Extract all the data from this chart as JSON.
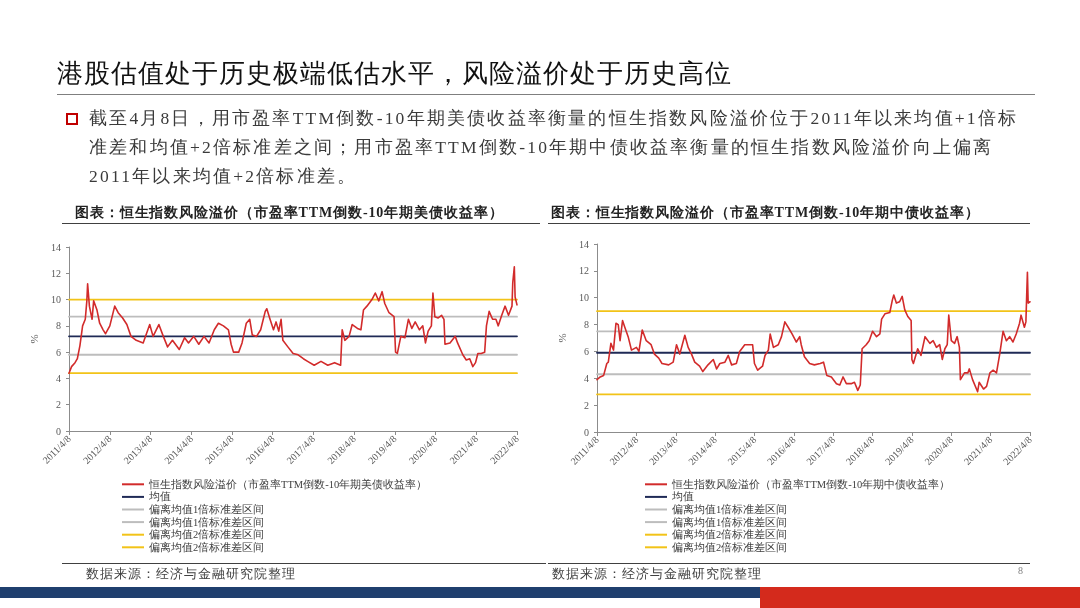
{
  "chart_data": [
    {
      "type": "other",
      "title": "港股估值处于历史极端低估水平，风险溢价处于历史高位",
      "annotations": [
        "截至4月8日，用市盈率TTM倒数-10年期美债收益率衡量的恒生指数风险溢价位于2011年以来均值+1倍标准差和均值+2倍标准差之间；用市盈率TTM倒数-10年期中债收益率衡量的恒生指数风险溢价向上偏离2011年以来均值+2倍标准差。",
        "8"
      ]
    },
    {
      "type": "line",
      "title": "图表：恒生指数风险溢价（市盈率TTM倒数-10年期美债收益率）",
      "ylabel": "%",
      "xlim": [
        "2011-04-08",
        "2022-04-08"
      ],
      "xticks": [
        {
          "value": "2011-04-08",
          "label": "2011/4/8"
        },
        {
          "value": "2012-04-08",
          "label": "2012/4/8"
        },
        {
          "value": "2013-04-08",
          "label": "2013/4/8"
        },
        {
          "value": "2014-04-08",
          "label": "2014/4/8"
        },
        {
          "value": "2015-04-08",
          "label": "2015/4/8"
        },
        {
          "value": "2016-04-08",
          "label": "2016/4/8"
        },
        {
          "value": "2017-04-08",
          "label": "2017/4/8"
        },
        {
          "value": "2018-04-08",
          "label": "2018/4/8"
        },
        {
          "value": "2019-04-08",
          "label": "2019/4/8"
        },
        {
          "value": "2020-04-08",
          "label": "2020/4/8"
        },
        {
          "value": "2021-04-08",
          "label": "2021/4/8"
        },
        {
          "value": "2022-04-08",
          "label": "2022/4/8"
        }
      ],
      "ylim": [
        0,
        14
      ],
      "yticks": [
        0,
        2,
        4,
        6,
        8,
        10,
        12,
        14
      ],
      "grid": false,
      "legend": "bottom",
      "marker": "none",
      "annotations": [
        "数据来源：经济与金融研究院整理"
      ],
      "series": [
        {
          "name": "恒生指数风险溢价（市盈率TTM倒数-10年期美债收益率）",
          "color": "#d22b2b",
          "x": [
            "2011-04-08",
            "2011-05-01",
            "2011-06-01",
            "2011-06-22",
            "2011-07-15",
            "2011-08-08",
            "2011-09-01",
            "2011-09-15",
            "2011-09-22",
            "2011-10-08",
            "2011-11-01",
            "2011-11-15",
            "2011-12-15",
            "2012-01-08",
            "2012-02-08",
            "2012-03-01",
            "2012-04-08",
            "2012-05-22",
            "2012-06-22",
            "2012-08-01",
            "2012-09-08",
            "2012-10-15",
            "2012-12-01",
            "2013-02-01",
            "2013-04-01",
            "2013-05-01",
            "2013-06-22",
            "2013-08-01",
            "2013-09-08",
            "2013-10-22",
            "2013-12-22",
            "2014-02-08",
            "2014-03-15",
            "2014-05-01",
            "2014-06-15",
            "2014-08-01",
            "2014-09-15",
            "2014-11-01",
            "2014-12-08",
            "2015-01-22",
            "2015-03-08",
            "2015-04-01",
            "2015-04-22",
            "2015-06-08",
            "2015-07-08",
            "2015-08-15",
            "2015-09-15",
            "2015-10-08",
            "2015-11-15",
            "2015-12-22",
            "2016-02-01",
            "2016-02-15",
            "2016-03-15",
            "2016-04-15",
            "2016-05-08",
            "2016-06-01",
            "2016-06-22",
            "2016-07-08",
            "2016-08-22",
            "2016-10-08",
            "2016-11-22",
            "2017-01-08",
            "2017-02-15",
            "2017-04-15",
            "2017-06-15",
            "2017-08-15",
            "2017-10-15",
            "2017-12-08",
            "2017-12-22",
            "2018-01-15",
            "2018-02-22",
            "2018-03-22",
            "2018-05-08",
            "2018-06-08",
            "2018-07-01",
            "2018-08-01",
            "2018-09-15",
            "2018-10-15",
            "2018-11-15",
            "2018-12-15",
            "2019-01-08",
            "2019-02-15",
            "2019-04-01",
            "2019-04-15",
            "2019-05-01",
            "2019-06-01",
            "2019-07-08",
            "2019-08-08",
            "2019-09-08",
            "2019-10-08",
            "2019-11-15",
            "2019-12-15",
            "2020-01-08",
            "2020-02-01",
            "2020-03-01",
            "2020-03-15",
            "2020-04-01",
            "2020-05-01",
            "2020-06-01",
            "2020-06-22",
            "2020-07-01",
            "2020-08-15",
            "2020-10-01",
            "2020-10-22",
            "2020-12-08",
            "2021-01-08",
            "2021-02-08",
            "2021-03-08",
            "2021-04-01",
            "2021-04-22",
            "2021-05-22",
            "2021-06-22",
            "2021-07-08",
            "2021-08-01",
            "2021-09-01",
            "2021-10-01",
            "2021-10-22",
            "2021-11-22",
            "2021-12-22",
            "2022-01-22",
            "2022-02-22",
            "2022-03-01",
            "2022-03-15",
            "2022-03-22",
            "2022-04-08"
          ],
          "values": [
            4.4,
            4.9,
            5.2,
            5.5,
            6.5,
            8.0,
            8.5,
            9.9,
            11.2,
            9.5,
            8.5,
            9.9,
            9.2,
            8.2,
            7.7,
            7.4,
            8.0,
            9.5,
            9.0,
            8.6,
            8.1,
            7.2,
            6.9,
            6.7,
            8.1,
            7.2,
            8.1,
            7.2,
            6.4,
            6.9,
            6.2,
            7.1,
            6.7,
            7.2,
            6.6,
            7.2,
            6.7,
            7.7,
            8.2,
            8.0,
            7.7,
            6.6,
            6.0,
            6.0,
            6.7,
            8.2,
            8.5,
            7.3,
            7.2,
            7.7,
            9.1,
            9.3,
            8.5,
            7.7,
            8.3,
            7.6,
            8.5,
            6.9,
            6.4,
            5.9,
            5.8,
            5.5,
            5.3,
            5.0,
            5.3,
            5.0,
            5.2,
            5.0,
            7.7,
            6.9,
            7.2,
            8.1,
            7.8,
            7.7,
            9.2,
            9.5,
            10.0,
            10.5,
            9.9,
            10.6,
            9.7,
            9.0,
            8.7,
            6.0,
            5.9,
            7.2,
            7.1,
            8.5,
            7.8,
            8.3,
            7.7,
            8.0,
            6.7,
            7.6,
            8.0,
            10.5,
            8.7,
            8.6,
            8.8,
            8.5,
            6.6,
            6.7,
            7.2,
            6.7,
            5.8,
            5.4,
            5.5,
            4.9,
            5.2,
            5.9,
            5.9,
            6.0,
            8.0,
            9.1,
            8.5,
            8.5,
            8.0,
            8.8,
            9.5,
            8.8,
            9.5,
            11.3,
            12.5,
            10.2,
            9.6
          ]
        },
        {
          "name": "均值",
          "color": "#1f2a56",
          "x": [
            "2011-04-08",
            "2022-04-08"
          ],
          "values": [
            7.2,
            7.2
          ]
        },
        {
          "name": "偏离均值1倍标准差区间",
          "color": "#bdbdbd",
          "x": [
            "2011-04-08",
            "2022-04-08"
          ],
          "values": [
            8.7,
            8.7
          ]
        },
        {
          "name": "偏离均值1倍标准差区间",
          "color": "#bdbdbd",
          "x": [
            "2011-04-08",
            "2022-04-08"
          ],
          "values": [
            5.8,
            5.8
          ]
        },
        {
          "name": "偏离均值2倍标准差区间",
          "color": "#f2c318",
          "x": [
            "2011-04-08",
            "2022-04-08"
          ],
          "values": [
            10.0,
            10.0
          ]
        },
        {
          "name": "偏离均值2倍标准差区间",
          "color": "#f2c318",
          "x": [
            "2011-04-08",
            "2022-04-08"
          ],
          "values": [
            4.4,
            4.4
          ]
        }
      ]
    },
    {
      "type": "line",
      "title": "图表：恒生指数风险溢价（市盈率TTM倒数-10年期中债收益率）",
      "ylabel": "%",
      "xlim": [
        "2011-04-08",
        "2022-04-08"
      ],
      "xticks": [
        {
          "value": "2011-04-08",
          "label": "2011/4/8"
        },
        {
          "value": "2012-04-08",
          "label": "2012/4/8"
        },
        {
          "value": "2013-04-08",
          "label": "2013/4/8"
        },
        {
          "value": "2014-04-08",
          "label": "2014/4/8"
        },
        {
          "value": "2015-04-08",
          "label": "2015/4/8"
        },
        {
          "value": "2016-04-08",
          "label": "2016/4/8"
        },
        {
          "value": "2017-04-08",
          "label": "2017/4/8"
        },
        {
          "value": "2018-04-08",
          "label": "2018/4/8"
        },
        {
          "value": "2019-04-08",
          "label": "2019/4/8"
        },
        {
          "value": "2020-04-08",
          "label": "2020/4/8"
        },
        {
          "value": "2021-04-08",
          "label": "2021/4/8"
        },
        {
          "value": "2022-04-08",
          "label": "2022/4/8"
        }
      ],
      "ylim": [
        0,
        14
      ],
      "yticks": [
        0,
        2,
        4,
        6,
        8,
        10,
        12,
        14
      ],
      "grid": false,
      "legend": "bottom",
      "marker": "none",
      "annotations": [
        "数据来源：经济与金融研究院整理"
      ],
      "series": [
        {
          "name": "恒生指数风险溢价（市盈率TTM倒数-10年期中债收益率）",
          "color": "#d22b2b",
          "x": [
            "2011-04-08",
            "2011-05-08",
            "2011-06-08",
            "2011-07-08",
            "2011-07-22",
            "2011-08-15",
            "2011-09-08",
            "2011-10-01",
            "2011-10-22",
            "2011-11-08",
            "2011-12-01",
            "2011-12-22",
            "2012-01-22",
            "2012-02-22",
            "2012-04-08",
            "2012-05-01",
            "2012-06-01",
            "2012-07-08",
            "2012-08-22",
            "2012-09-22",
            "2012-11-01",
            "2012-12-01",
            "2013-02-01",
            "2013-03-15",
            "2013-04-15",
            "2013-05-15",
            "2013-07-01",
            "2013-08-01",
            "2013-09-01",
            "2013-10-01",
            "2013-11-15",
            "2013-12-15",
            "2014-02-01",
            "2014-03-22",
            "2014-04-22",
            "2014-05-22",
            "2014-07-08",
            "2014-08-08",
            "2014-09-08",
            "2014-10-22",
            "2014-11-22",
            "2015-01-08",
            "2015-02-22",
            "2015-03-22",
            "2015-04-08",
            "2015-05-08",
            "2015-06-22",
            "2015-07-15",
            "2015-08-15",
            "2015-09-01",
            "2015-10-01",
            "2015-11-15",
            "2015-12-15",
            "2016-01-15",
            "2016-02-15",
            "2016-03-22",
            "2016-05-01",
            "2016-06-01",
            "2016-06-15",
            "2016-07-15",
            "2016-09-01",
            "2016-10-15",
            "2016-12-08",
            "2017-01-08",
            "2017-02-08",
            "2017-03-22",
            "2017-05-08",
            "2017-06-08",
            "2017-07-08",
            "2017-08-08",
            "2017-09-22",
            "2017-10-22",
            "2017-11-22",
            "2017-12-15",
            "2018-01-01",
            "2018-02-08",
            "2018-03-08",
            "2018-04-08",
            "2018-05-15",
            "2018-06-15",
            "2018-07-01",
            "2018-08-01",
            "2018-09-15",
            "2018-10-08",
            "2018-10-22",
            "2018-11-15",
            "2018-12-15",
            "2019-01-08",
            "2019-02-01",
            "2019-03-01",
            "2019-04-01",
            "2019-04-08",
            "2019-04-22",
            "2019-06-01",
            "2019-07-01",
            "2019-08-08",
            "2019-09-22",
            "2019-10-22",
            "2019-11-22",
            "2019-12-22",
            "2020-01-15",
            "2020-02-08",
            "2020-03-01",
            "2020-03-15",
            "2020-04-08",
            "2020-05-08",
            "2020-06-01",
            "2020-06-22",
            "2020-07-01",
            "2020-08-08",
            "2020-09-08",
            "2020-09-22",
            "2020-10-22",
            "2020-12-08",
            "2020-12-22",
            "2021-02-01",
            "2021-03-01",
            "2021-04-01",
            "2021-05-01",
            "2021-06-01",
            "2021-07-01",
            "2021-08-01",
            "2021-09-01",
            "2021-10-01",
            "2021-11-01",
            "2021-12-01",
            "2022-01-01",
            "2022-01-15",
            "2022-02-15",
            "2022-03-01",
            "2022-03-08",
            "2022-03-15",
            "2022-03-22",
            "2022-04-08"
          ],
          "values": [
            3.9,
            4.1,
            4.2,
            5.1,
            5.2,
            6.6,
            6.1,
            8.1,
            8.0,
            6.8,
            8.3,
            7.8,
            7.1,
            6.1,
            6.3,
            6.0,
            7.6,
            6.8,
            6.5,
            5.8,
            5.5,
            5.1,
            5.0,
            5.2,
            6.5,
            5.8,
            7.2,
            6.3,
            5.8,
            5.2,
            4.9,
            4.5,
            5.0,
            5.4,
            4.7,
            5.1,
            5.2,
            5.7,
            5.0,
            5.1,
            6.0,
            6.5,
            6.5,
            6.5,
            5.1,
            4.6,
            4.9,
            5.7,
            6.1,
            7.3,
            6.3,
            6.5,
            7.1,
            8.2,
            7.8,
            7.3,
            6.7,
            7.1,
            6.5,
            5.6,
            5.1,
            5.0,
            5.1,
            5.2,
            4.2,
            4.1,
            3.6,
            3.5,
            4.1,
            3.6,
            3.6,
            3.7,
            3.1,
            3.5,
            6.2,
            6.5,
            6.8,
            7.5,
            7.1,
            7.3,
            8.4,
            8.8,
            8.9,
            9.8,
            10.2,
            9.6,
            9.7,
            10.1,
            9.1,
            8.6,
            8.3,
            5.4,
            5.1,
            6.2,
            5.7,
            7.1,
            6.6,
            6.8,
            6.3,
            6.5,
            5.4,
            6.2,
            6.5,
            8.7,
            6.8,
            6.6,
            7.1,
            6.3,
            3.9,
            4.4,
            4.4,
            4.7,
            3.9,
            3.0,
            3.7,
            3.2,
            3.4,
            4.4,
            4.6,
            4.4,
            5.8,
            7.5,
            6.8,
            7.1,
            6.7,
            7.3,
            8.1,
            8.7,
            7.8,
            8.2,
            10.1,
            11.9,
            9.6,
            9.7
          ]
        },
        {
          "name": "均值",
          "color": "#1f2a56",
          "x": [
            "2011-04-08",
            "2022-04-08"
          ],
          "values": [
            5.9,
            5.9
          ]
        },
        {
          "name": "偏离均值1倍标准差区间",
          "color": "#bdbdbd",
          "x": [
            "2011-04-08",
            "2022-04-08"
          ],
          "values": [
            7.5,
            7.5
          ]
        },
        {
          "name": "偏离均值1倍标准差区间",
          "color": "#bdbdbd",
          "x": [
            "2011-04-08",
            "2022-04-08"
          ],
          "values": [
            4.3,
            4.3
          ]
        },
        {
          "name": "偏离均值2倍标准差区间",
          "color": "#f2c318",
          "x": [
            "2011-04-08",
            "2022-04-08"
          ],
          "values": [
            9.0,
            9.0
          ]
        },
        {
          "name": "偏离均值2倍标准差区间",
          "color": "#f2c318",
          "x": [
            "2011-04-08",
            "2022-04-08"
          ],
          "values": [
            2.8,
            2.8
          ]
        }
      ]
    }
  ]
}
